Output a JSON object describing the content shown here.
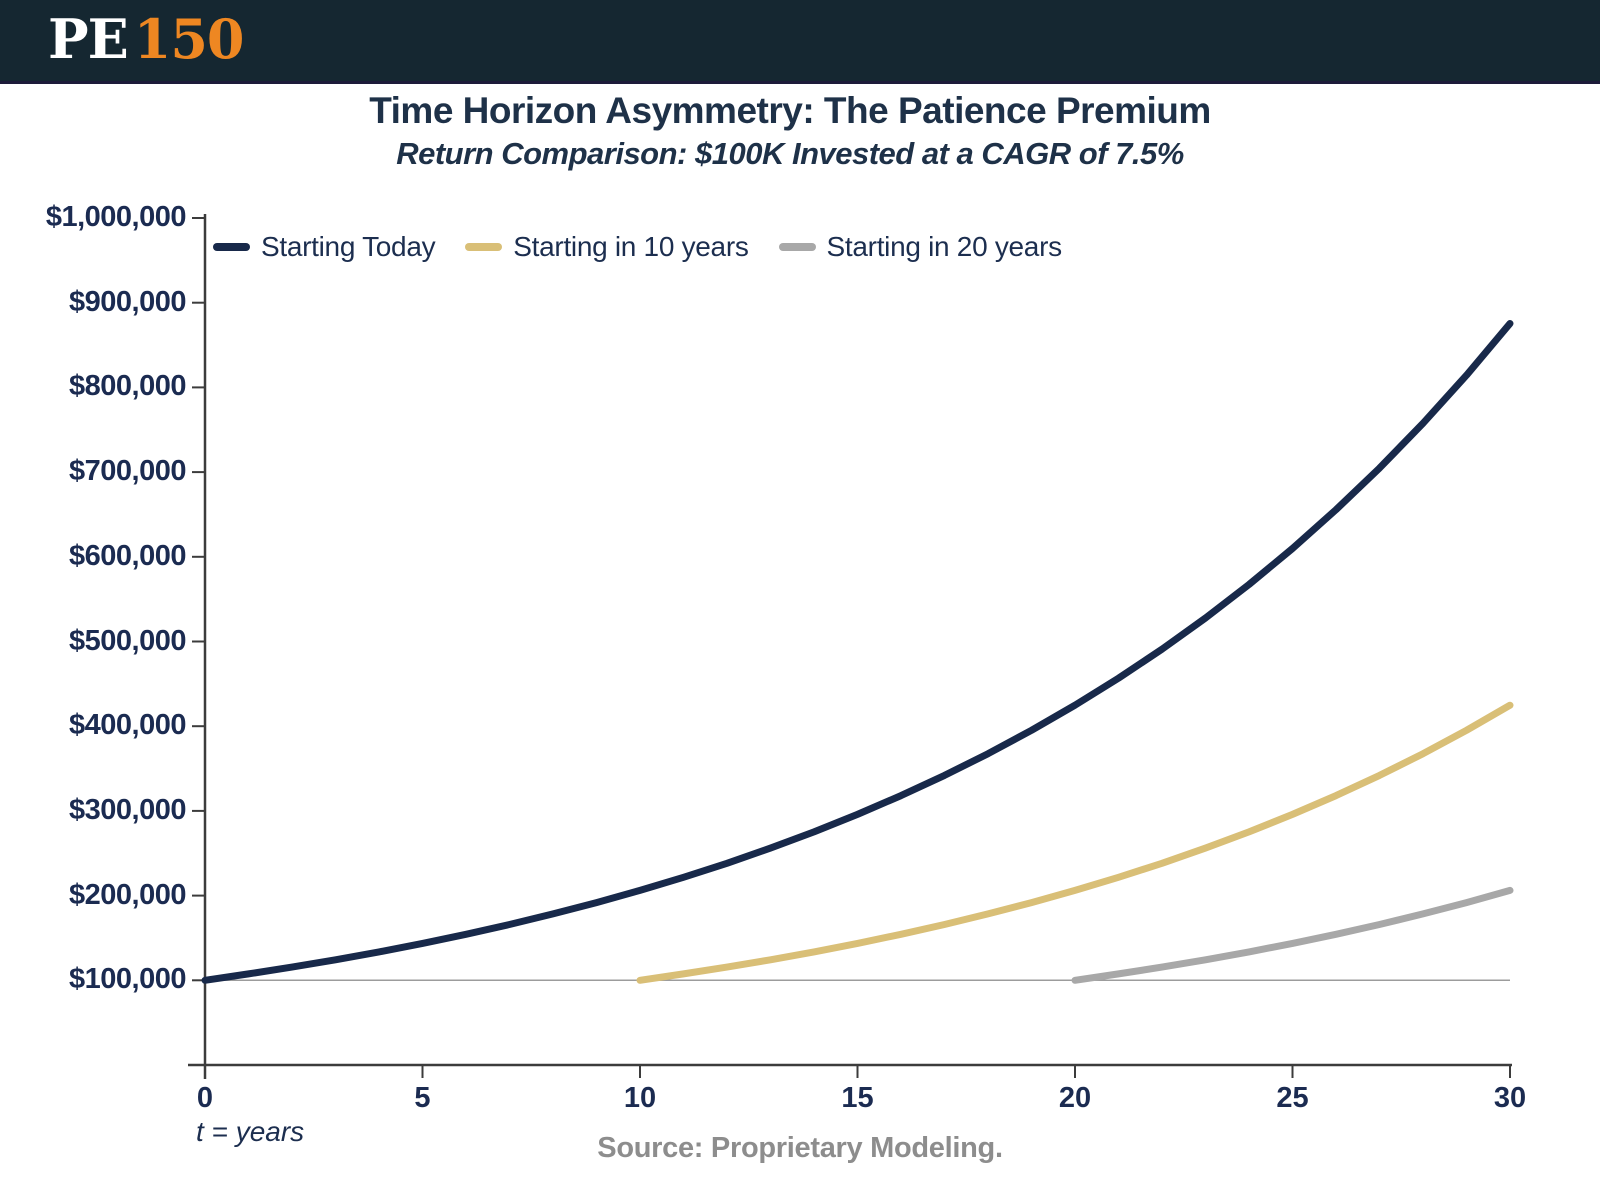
{
  "header": {
    "logo_pe": "PE",
    "logo_150": "150"
  },
  "title": "Time Horizon Asymmetry: The Patience Premium",
  "subtitle": "Return Comparison: $100K Invested at a CAGR of 7.5%",
  "footer": {
    "axis_note": "t = years",
    "source": "Source: Proprietary Modeling."
  },
  "colors": {
    "header_bg": "#152731",
    "header_border": "#1d1b3a",
    "logo_white": "#ffffff",
    "logo_orange": "#ee8722",
    "navy": "#18294a",
    "gold": "#d9bf77",
    "gray": "#a8a8a8",
    "text_navy": "#1b2b51",
    "axis": "#3c3c3c",
    "gridline": "#9c9c9c",
    "source_gray": "#8d8d8d"
  },
  "chart_data": {
    "type": "line",
    "title": "Time Horizon Asymmetry: The Patience Premium",
    "subtitle": "Return Comparison: $100K Invested at a CAGR of 7.5%",
    "xlabel": "t = years",
    "ylabel": "",
    "xlim": [
      0,
      30
    ],
    "ylim": [
      0,
      1000000
    ],
    "x_ticks": [
      0,
      5,
      10,
      15,
      20,
      25,
      30
    ],
    "y_tick_values": [
      100000,
      200000,
      300000,
      400000,
      500000,
      600000,
      700000,
      800000,
      900000,
      1000000
    ],
    "y_tick_labels": [
      "$100,000",
      "$200,000",
      "$300,000",
      "$400,000",
      "$500,000",
      "$600,000",
      "$700,000",
      "$800,000",
      "$900,000",
      "$1,000,000"
    ],
    "grid": "single horizontal gridline at $100,000",
    "gridline_value": 100000,
    "legend_position": "top-left",
    "initial_investment": 100000,
    "cagr_percent": 7.5,
    "series": [
      {
        "name": "Starting Today",
        "color_key": "navy",
        "start_year": 0,
        "years": [
          0,
          1,
          2,
          3,
          4,
          5,
          6,
          7,
          8,
          9,
          10,
          11,
          12,
          13,
          14,
          15,
          16,
          17,
          18,
          19,
          20,
          21,
          22,
          23,
          24,
          25,
          26,
          27,
          28,
          29,
          30
        ],
        "values": [
          100000,
          107500,
          115563,
          124230,
          133547,
          143563,
          154330,
          165905,
          178348,
          191724,
          206103,
          221561,
          238178,
          256041,
          275244,
          295888,
          318079,
          341935,
          367580,
          395149,
          424785,
          456644,
          490892,
          527709,
          567287,
          609834,
          655572,
          704739,
          757595,
          814414,
          875496
        ]
      },
      {
        "name": "Starting in 10 years",
        "color_key": "gold",
        "start_year": 10,
        "years": [
          10,
          11,
          12,
          13,
          14,
          15,
          16,
          17,
          18,
          19,
          20,
          21,
          22,
          23,
          24,
          25,
          26,
          27,
          28,
          29,
          30
        ],
        "values": [
          100000,
          107500,
          115563,
          124230,
          133547,
          143563,
          154330,
          165905,
          178348,
          191724,
          206103,
          221561,
          238178,
          256041,
          275244,
          295888,
          318079,
          341935,
          367580,
          395149,
          424785
        ]
      },
      {
        "name": "Starting in 20 years",
        "color_key": "gray",
        "start_year": 20,
        "years": [
          20,
          21,
          22,
          23,
          24,
          25,
          26,
          27,
          28,
          29,
          30
        ],
        "values": [
          100000,
          107500,
          115563,
          124230,
          133547,
          143563,
          154330,
          165905,
          178348,
          191724,
          206103
        ]
      }
    ]
  }
}
